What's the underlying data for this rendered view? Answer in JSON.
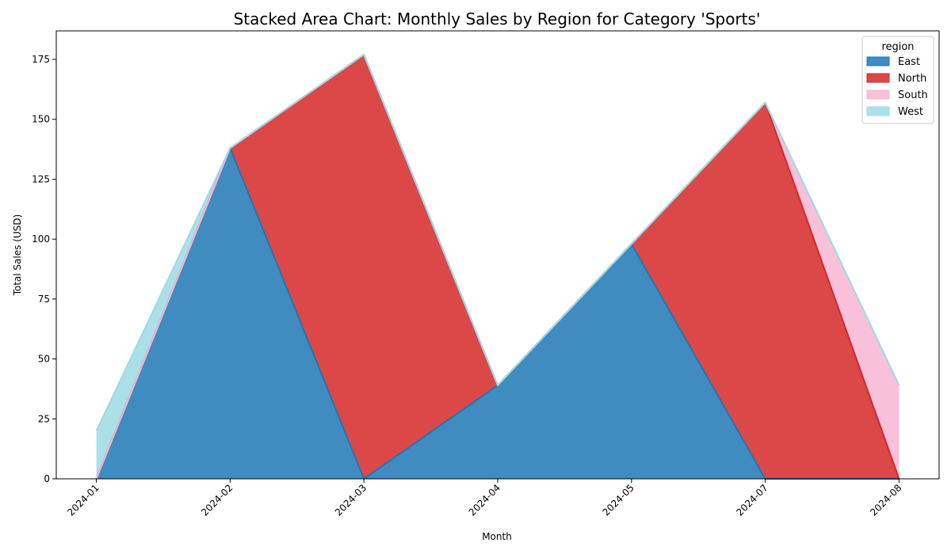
{
  "chart_data": {
    "type": "area",
    "stacked": true,
    "title": "Stacked Area Chart: Monthly Sales by Region for Category 'Sports'",
    "xlabel": "Month",
    "ylabel": "Total Sales (USD)",
    "categories": [
      "2024-01",
      "2024-02",
      "2024-03",
      "2024-04",
      "2024-05",
      "2024-07",
      "2024-08"
    ],
    "ylim": [
      0,
      186.9
    ],
    "yticks": [
      0,
      25,
      50,
      75,
      100,
      125,
      150,
      175
    ],
    "legend": {
      "title": "region",
      "placement": "top-right"
    },
    "grid": false,
    "series": [
      {
        "name": "East",
        "color": "#1f77b4",
        "values": [
          0,
          138,
          0,
          39,
          98,
          0,
          0
        ]
      },
      {
        "name": "North",
        "color": "#d62728",
        "values": [
          0,
          0,
          177,
          0,
          0,
          157,
          0
        ]
      },
      {
        "name": "South",
        "color": "#f7b6d2",
        "values": [
          0,
          0,
          0,
          0,
          0,
          0,
          39
        ]
      },
      {
        "name": "West",
        "color": "#9edae5",
        "values": [
          20,
          0,
          0,
          0,
          0,
          0,
          0
        ]
      }
    ]
  }
}
